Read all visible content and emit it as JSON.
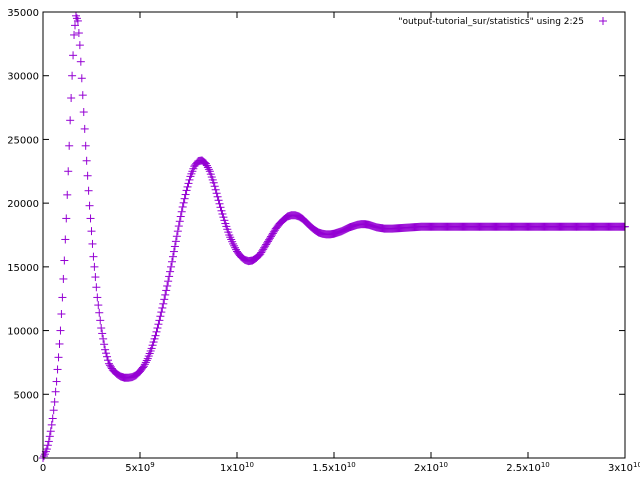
{
  "chart_data": {
    "type": "scatter",
    "title": "",
    "xlabel": "",
    "ylabel": "",
    "xlim": [
      0,
      30000000000
    ],
    "ylim": [
      0,
      35000
    ],
    "grid": false,
    "legend_position": "top-right",
    "series_color": "#9400d3",
    "x_ticks": [
      {
        "value": 0,
        "label": "0"
      },
      {
        "value": 5000000000,
        "label": "5x10",
        "exp": "9"
      },
      {
        "value": 10000000000,
        "label": "1x10",
        "exp": "10"
      },
      {
        "value": 15000000000,
        "label": "1.5x10",
        "exp": "10"
      },
      {
        "value": 20000000000,
        "label": "2x10",
        "exp": "10"
      },
      {
        "value": 25000000000,
        "label": "2.5x10",
        "exp": "10"
      },
      {
        "value": 30000000000,
        "label": "3x10",
        "exp": "10"
      }
    ],
    "y_ticks": [
      {
        "value": 0,
        "label": "0"
      },
      {
        "value": 5000,
        "label": "5000"
      },
      {
        "value": 10000,
        "label": "10000"
      },
      {
        "value": 15000,
        "label": "15000"
      },
      {
        "value": 20000,
        "label": "20000"
      },
      {
        "value": 25000,
        "label": "25000"
      },
      {
        "value": 30000,
        "label": "30000"
      },
      {
        "value": 35000,
        "label": "35000"
      }
    ],
    "series": [
      {
        "name": "\"output-tutorial_sur/statistics\" using 2:25",
        "marker": "+",
        "points": [
          [
            0,
            0
          ],
          [
            100000000,
            300
          ],
          [
            200000000,
            700
          ],
          [
            300000000,
            1300
          ],
          [
            400000000,
            2100
          ],
          [
            500000000,
            3100
          ],
          [
            600000000,
            4400
          ],
          [
            700000000,
            6000
          ],
          [
            800000000,
            7900
          ],
          [
            900000000,
            10000
          ],
          [
            1000000000,
            12600
          ],
          [
            1100000000,
            15500
          ],
          [
            1200000000,
            18800
          ],
          [
            1300000000,
            22500
          ],
          [
            1400000000,
            26500
          ],
          [
            1500000000,
            30000
          ],
          [
            1600000000,
            33200
          ],
          [
            1700000000,
            34700
          ],
          [
            1800000000,
            34300
          ],
          [
            1900000000,
            32400
          ],
          [
            2000000000,
            29800
          ],
          [
            2200000000,
            24500
          ],
          [
            2400000000,
            19800
          ],
          [
            2600000000,
            15800
          ],
          [
            2800000000,
            12600
          ],
          [
            3000000000,
            10200
          ],
          [
            3200000000,
            8500
          ],
          [
            3400000000,
            7400
          ],
          [
            3600000000,
            6900
          ],
          [
            3800000000,
            6600
          ],
          [
            4000000000,
            6400
          ],
          [
            4200000000,
            6300
          ],
          [
            4400000000,
            6300
          ],
          [
            4600000000,
            6350
          ],
          [
            4800000000,
            6500
          ],
          [
            5000000000,
            6800
          ],
          [
            5200000000,
            7200
          ],
          [
            5400000000,
            7800
          ],
          [
            5600000000,
            8600
          ],
          [
            5800000000,
            9600
          ],
          [
            6000000000,
            10800
          ],
          [
            6200000000,
            12100
          ],
          [
            6400000000,
            13500
          ],
          [
            6600000000,
            15000
          ],
          [
            6800000000,
            16600
          ],
          [
            7000000000,
            18200
          ],
          [
            7200000000,
            19700
          ],
          [
            7400000000,
            21000
          ],
          [
            7600000000,
            22100
          ],
          [
            7800000000,
            22900
          ],
          [
            8000000000,
            23300
          ],
          [
            8200000000,
            23350
          ],
          [
            8400000000,
            23100
          ],
          [
            8600000000,
            22500
          ],
          [
            8800000000,
            21600
          ],
          [
            9000000000,
            20500
          ],
          [
            9200000000,
            19400
          ],
          [
            9400000000,
            18400
          ],
          [
            9600000000,
            17500
          ],
          [
            9800000000,
            16800
          ],
          [
            10000000000,
            16200
          ],
          [
            10200000000,
            15800
          ],
          [
            10400000000,
            15550
          ],
          [
            10600000000,
            15450
          ],
          [
            10800000000,
            15500
          ],
          [
            11000000000,
            15700
          ],
          [
            11200000000,
            16000
          ],
          [
            11400000000,
            16500
          ],
          [
            11600000000,
            17000
          ],
          [
            11800000000,
            17500
          ],
          [
            12000000000,
            18000
          ],
          [
            12200000000,
            18400
          ],
          [
            12400000000,
            18700
          ],
          [
            12600000000,
            18950
          ],
          [
            12800000000,
            19050
          ],
          [
            13000000000,
            19050
          ],
          [
            13200000000,
            18950
          ],
          [
            13400000000,
            18750
          ],
          [
            13600000000,
            18450
          ],
          [
            13800000000,
            18150
          ],
          [
            14000000000,
            17900
          ],
          [
            14200000000,
            17700
          ],
          [
            14400000000,
            17600
          ],
          [
            14600000000,
            17550
          ],
          [
            14800000000,
            17550
          ],
          [
            15000000000,
            17600
          ],
          [
            15200000000,
            17700
          ],
          [
            15400000000,
            17800
          ],
          [
            15600000000,
            17950
          ],
          [
            15800000000,
            18100
          ],
          [
            16000000000,
            18200
          ],
          [
            16200000000,
            18300
          ],
          [
            16400000000,
            18350
          ],
          [
            16600000000,
            18350
          ],
          [
            16800000000,
            18300
          ],
          [
            17000000000,
            18200
          ],
          [
            17200000000,
            18100
          ],
          [
            17400000000,
            18050
          ],
          [
            17600000000,
            18000
          ],
          [
            17800000000,
            18000
          ],
          [
            18000000000,
            18000
          ],
          [
            18500000000,
            18050
          ],
          [
            19000000000,
            18100
          ],
          [
            19500000000,
            18150
          ],
          [
            20000000000,
            18150
          ],
          [
            20500000000,
            18150
          ],
          [
            21000000000,
            18150
          ],
          [
            21500000000,
            18150
          ],
          [
            22000000000,
            18150
          ],
          [
            22500000000,
            18150
          ],
          [
            23000000000,
            18150
          ],
          [
            23500000000,
            18150
          ],
          [
            24000000000,
            18150
          ],
          [
            24500000000,
            18150
          ],
          [
            25000000000,
            18150
          ],
          [
            25500000000,
            18150
          ],
          [
            26000000000,
            18150
          ],
          [
            26500000000,
            18150
          ],
          [
            27000000000,
            18150
          ],
          [
            27500000000,
            18150
          ],
          [
            28000000000,
            18150
          ],
          [
            28500000000,
            18150
          ],
          [
            29000000000,
            18150
          ],
          [
            29500000000,
            18150
          ],
          [
            30000000000,
            18150
          ]
        ]
      }
    ]
  }
}
